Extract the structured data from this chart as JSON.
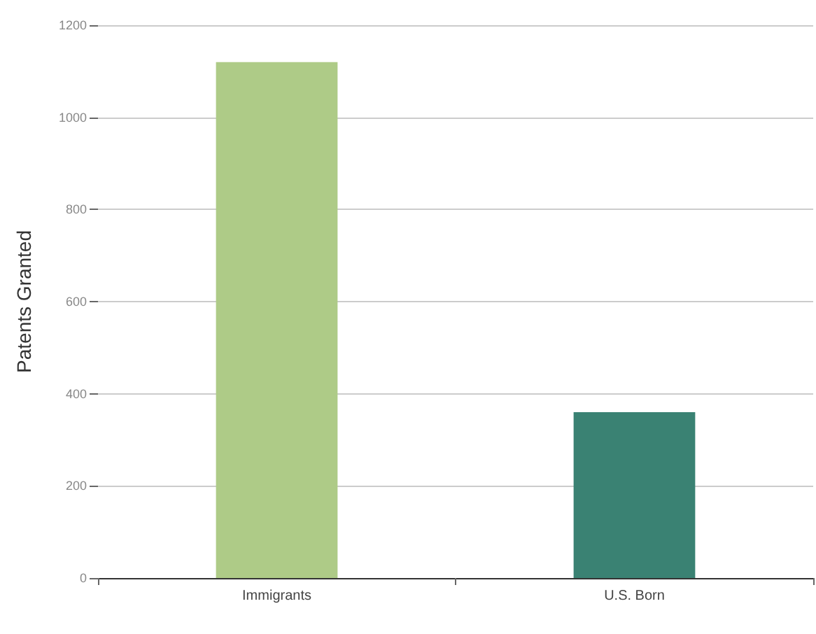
{
  "chart_data": {
    "type": "bar",
    "ylabel": "Patents Granted",
    "categories": [
      "Immigrants",
      "U.S. Born"
    ],
    "values": [
      1120,
      360
    ],
    "colors": [
      "#aecb87",
      "#3a8273"
    ],
    "ylim": [
      0,
      1200
    ],
    "yticks": [
      0,
      200,
      400,
      600,
      800,
      1000,
      1200
    ],
    "grid": "y"
  }
}
